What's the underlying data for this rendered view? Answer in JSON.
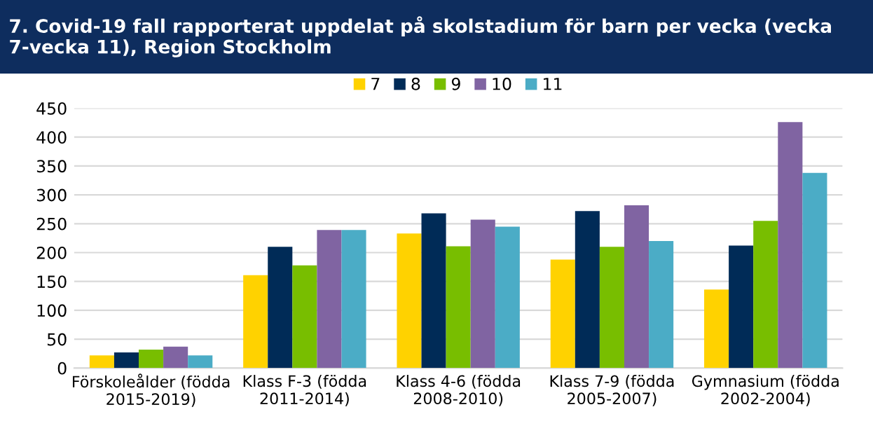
{
  "chart_data": {
    "type": "bar",
    "title": "7. Covid-19 fall rapporterat uppdelat på skolstadium för barn per vecka (vecka 7-vecka 11), Region Stockholm",
    "categories": [
      "Förskoleålder (födda 2015-2019)",
      "Klass F-3 (födda 2011-2014)",
      "Klass 4-6 (födda 2008-2010)",
      "Klass 7-9 (födda 2005-2007)",
      "Gymnasium (födda 2002-2004)"
    ],
    "series": [
      {
        "name": "7",
        "color": "#ffd200",
        "values": [
          22,
          161,
          233,
          188,
          136
        ]
      },
      {
        "name": "8",
        "color": "#002b57",
        "values": [
          27,
          210,
          268,
          272,
          212
        ]
      },
      {
        "name": "9",
        "color": "#78be00",
        "values": [
          32,
          178,
          211,
          210,
          255
        ]
      },
      {
        "name": "10",
        "color": "#8064a2",
        "values": [
          37,
          239,
          257,
          282,
          426
        ]
      },
      {
        "name": "11",
        "color": "#4bacc6",
        "values": [
          22,
          239,
          245,
          220,
          338
        ]
      }
    ],
    "ylim": [
      0,
      450
    ],
    "yticks": [
      0,
      50,
      100,
      150,
      200,
      250,
      300,
      350,
      400,
      450
    ],
    "grid": "y",
    "legend": "top"
  }
}
